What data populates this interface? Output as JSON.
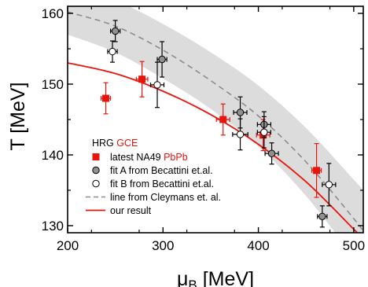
{
  "chart_data": {
    "type": "scatter",
    "xlabel_main": "μ",
    "xlabel_sub": "B",
    "xlabel_unit": "[MeV]",
    "ylabel": "T [MeV]",
    "xlim": [
      200,
      510
    ],
    "ylim": [
      129,
      161
    ],
    "xticks": [
      200,
      300,
      400,
      500
    ],
    "yticks": [
      130,
      140,
      150,
      160
    ],
    "grid": false,
    "legend": {
      "position": "lower-left",
      "header_black": "HRG",
      "header_red": "GCE",
      "entries": [
        {
          "label_black": "latest NA49",
          "label_red": "PbPb",
          "marker": "filled-square",
          "color": "#e8150c"
        },
        {
          "label_black": "fit A from Becattini et.al.",
          "label_red": "",
          "marker": "gray-circle",
          "color": "#909090"
        },
        {
          "label_black": "fit B from Becattini et.al.",
          "label_red": "",
          "marker": "open-circle",
          "color": "#000000"
        },
        {
          "label_black": "line from Cleymans et. al.",
          "label_red": "",
          "marker": "dashed-line",
          "color": "#8c8c8c"
        },
        {
          "label_black": "our result",
          "label_red": "",
          "marker": "solid-line",
          "color": "#e8150c"
        }
      ]
    },
    "series": [
      {
        "name": "latest NA49 PbPb",
        "marker": "filled-square",
        "color": "#e8150c",
        "points": [
          {
            "x": 240,
            "y": 148.0,
            "xerr": 5,
            "yerr": 2.2
          },
          {
            "x": 278,
            "y": 150.7,
            "xerr": 6,
            "yerr": 2.5
          },
          {
            "x": 363,
            "y": 145.0,
            "xerr": 7,
            "yerr": 2.2
          },
          {
            "x": 405,
            "y": 142.8,
            "xerr": 7,
            "yerr": 2.2
          },
          {
            "x": 461,
            "y": 137.8,
            "xerr": 5,
            "yerr": 3.8
          }
        ]
      },
      {
        "name": "fit A from Becattini et.al.",
        "marker": "gray-circle",
        "color": "#909090",
        "points": [
          {
            "x": 250,
            "y": 157.5,
            "xerr": 5,
            "yerr": 1.5
          },
          {
            "x": 299,
            "y": 153.5,
            "xerr": 5,
            "yerr": 2.5
          },
          {
            "x": 381,
            "y": 146.0,
            "xerr": 7,
            "yerr": 2.2
          },
          {
            "x": 406,
            "y": 144.3,
            "xerr": 7,
            "yerr": 1.8
          },
          {
            "x": 414,
            "y": 140.2,
            "xerr": 7,
            "yerr": 1.5
          },
          {
            "x": 467,
            "y": 131.3,
            "xerr": 5,
            "yerr": 1.5
          }
        ]
      },
      {
        "name": "fit B from Becattini et.al.",
        "marker": "open-circle",
        "color": "#000000",
        "points": [
          {
            "x": 247,
            "y": 154.6,
            "xerr": 5,
            "yerr": 1.5
          },
          {
            "x": 294,
            "y": 149.9,
            "xerr": 7,
            "yerr": 3.2
          },
          {
            "x": 381,
            "y": 142.9,
            "xerr": 8,
            "yerr": 2.2
          },
          {
            "x": 406,
            "y": 143.2,
            "xerr": 7,
            "yerr": 2.2
          },
          {
            "x": 474,
            "y": 135.8,
            "xerr": 7,
            "yerr": 3.0
          }
        ]
      }
    ],
    "lines": [
      {
        "name": "line from Cleymans et. al.",
        "style": "dashed",
        "color": "#8c8c8c",
        "points": [
          [
            200,
            160.2
          ],
          [
            250,
            158.2
          ],
          [
            300,
            154.8
          ],
          [
            350,
            150.5
          ],
          [
            400,
            145.5
          ],
          [
            450,
            139.0
          ],
          [
            500,
            131.0
          ],
          [
            510,
            129.2
          ]
        ]
      },
      {
        "name": "our result",
        "style": "solid",
        "color": "#e8150c",
        "points": [
          [
            200,
            153.0
          ],
          [
            250,
            151.5
          ],
          [
            300,
            149.0
          ],
          [
            350,
            145.7
          ],
          [
            400,
            141.5
          ],
          [
            450,
            136.2
          ],
          [
            500,
            129.5
          ],
          [
            505,
            128.8
          ]
        ]
      }
    ],
    "band": {
      "color": "#dcdcdc",
      "upper": [
        [
          200,
          163.5
        ],
        [
          250,
          161.8
        ],
        [
          300,
          158.5
        ],
        [
          350,
          154.5
        ],
        [
          400,
          149.8
        ],
        [
          450,
          143.8
        ],
        [
          500,
          136.5
        ],
        [
          510,
          135.0
        ]
      ],
      "lower": [
        [
          200,
          157.0
        ],
        [
          250,
          154.5
        ],
        [
          300,
          150.8
        ],
        [
          350,
          146.5
        ],
        [
          400,
          141.2
        ],
        [
          450,
          134.2
        ],
        [
          500,
          125.5
        ],
        [
          510,
          123.6
        ]
      ]
    }
  }
}
